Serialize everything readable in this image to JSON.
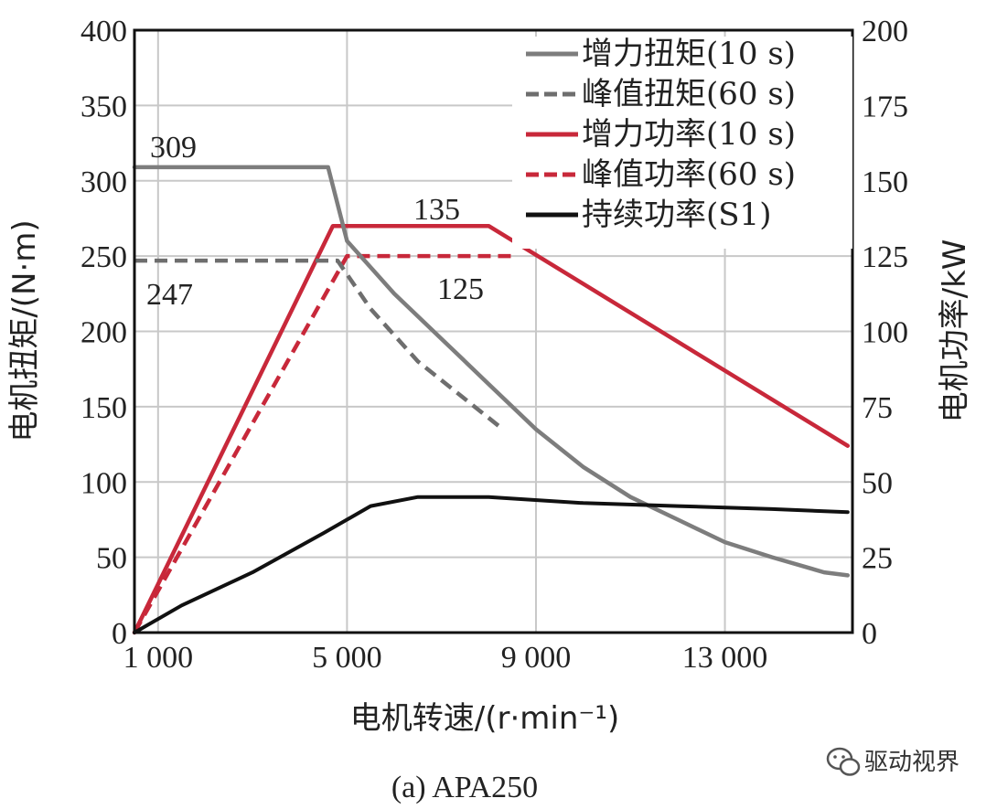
{
  "chart_data": {
    "type": "line",
    "xlabel": "电机转速/(r·min⁻¹)",
    "ylabel_left": "电机扭矩/(N·m)",
    "ylabel_right": "电机功率/kW",
    "xlim": [
      500,
      15700
    ],
    "ylim_left": [
      0,
      400
    ],
    "ylim_right": [
      0,
      200
    ],
    "x_ticks": [
      1000,
      5000,
      9000,
      13000
    ],
    "x_tick_labels": [
      "1 000",
      "5 000",
      "9 000",
      "13 000"
    ],
    "y_left_ticks": [
      0,
      50,
      100,
      150,
      200,
      250,
      300,
      350,
      400
    ],
    "y_right_ticks": [
      0,
      25,
      50,
      75,
      100,
      125,
      150,
      175,
      200
    ],
    "grid": true,
    "legend_position": "top-right",
    "series": [
      {
        "name": "增力扭矩(10 s)",
        "axis": "left",
        "color": "#7d7d7d",
        "dash": "solid",
        "x": [
          500,
          4600,
          5000,
          6000,
          7000,
          8000,
          9000,
          10000,
          11000,
          12000,
          13000,
          14000,
          15100,
          15600
        ],
        "y": [
          309,
          309,
          260,
          225,
          195,
          165,
          135,
          110,
          90,
          75,
          60,
          50,
          40,
          38
        ]
      },
      {
        "name": "峰值扭矩(60 s)",
        "axis": "left",
        "color": "#6e6e6e",
        "dash": "dashed",
        "x": [
          500,
          4800,
          5500,
          6500,
          7500,
          8300
        ],
        "y": [
          247,
          247,
          215,
          180,
          155,
          135
        ]
      },
      {
        "name": "增力功率(10 s)",
        "axis": "right",
        "color": "#c8283a",
        "dash": "solid",
        "x": [
          500,
          4700,
          8000,
          15600
        ],
        "y": [
          0,
          135,
          135,
          62
        ]
      },
      {
        "name": "峰值功率(60 s)",
        "axis": "right",
        "color": "#c8283a",
        "dash": "dashed",
        "x": [
          500,
          5000,
          8500
        ],
        "y": [
          0,
          125,
          125
        ]
      },
      {
        "name": "持续功率(S1)",
        "axis": "right",
        "color": "#111111",
        "dash": "solid",
        "x": [
          500,
          1500,
          3000,
          4500,
          5500,
          6500,
          8000,
          10000,
          12000,
          14000,
          15600
        ],
        "y": [
          0,
          9,
          20,
          33,
          42,
          45,
          45,
          43,
          42,
          41,
          40
        ]
      }
    ],
    "annotations": [
      {
        "text": "309"
      },
      {
        "text": "247"
      },
      {
        "text": "135"
      },
      {
        "text": "125"
      }
    ]
  },
  "caption": "(a) APA250",
  "watermark": "驱动视界",
  "watermark_icon": "wechat-icon"
}
